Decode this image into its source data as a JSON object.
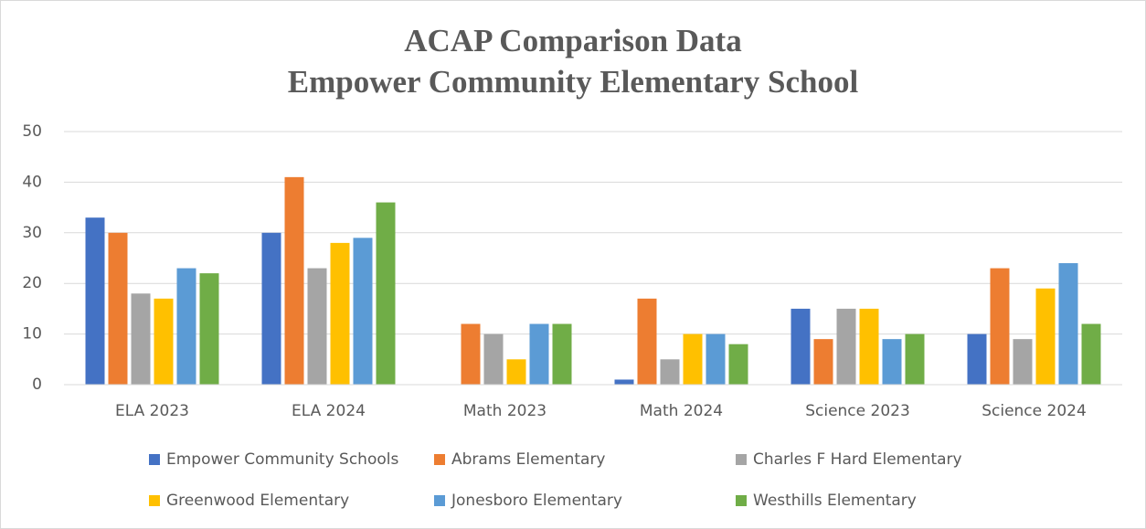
{
  "chart_data": {
    "type": "bar",
    "title": "ACAP Comparison Data",
    "subtitle": "Empower Community Elementary School",
    "categories": [
      "ELA 2023",
      "ELA 2024",
      "Math 2023",
      "Math 2024",
      "Science 2023",
      "Science 2024"
    ],
    "series": [
      {
        "name": "Empower Community Schools",
        "color": "#4472c4",
        "values": [
          33,
          30,
          null,
          1,
          15,
          10
        ]
      },
      {
        "name": "Abrams Elementary",
        "color": "#ed7d31",
        "values": [
          30,
          41,
          12,
          17,
          9,
          23
        ]
      },
      {
        "name": "Charles F Hard Elementary",
        "color": "#a5a5a5",
        "values": [
          18,
          23,
          10,
          5,
          15,
          9
        ]
      },
      {
        "name": "Greenwood Elementary",
        "color": "#ffc000",
        "values": [
          17,
          28,
          5,
          10,
          15,
          19
        ]
      },
      {
        "name": "Jonesboro Elementary",
        "color": "#5b9bd5",
        "values": [
          23,
          29,
          12,
          10,
          9,
          24
        ]
      },
      {
        "name": "Westhills Elementary",
        "color": "#70ad47",
        "values": [
          22,
          36,
          12,
          8,
          10,
          12
        ]
      }
    ],
    "ylim": [
      0,
      50
    ],
    "yticks": [
      0,
      10,
      20,
      30,
      40,
      50
    ],
    "grid": true,
    "legend": "bottom"
  }
}
